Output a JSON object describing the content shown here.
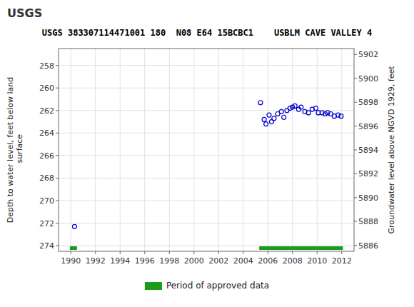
{
  "chart_data": {
    "type": "scatter",
    "title": "USGS 383307114471001 180  N08 E64 15BCBC1    USBLM CAVE VALLEY 4",
    "annotations": [
      "USGS"
    ],
    "y_label": "Depth to water level, feet below land\n surface",
    "y2_label": "Groundwater level above NGVD 1929, feet",
    "xlim": [
      1989.0,
      2013.0
    ],
    "ylim": [
      274.5,
      256.5
    ],
    "y2lim": [
      5885.5,
      5902.5
    ],
    "xticks": [
      1990,
      1992,
      1994,
      1996,
      1998,
      2000,
      2002,
      2004,
      2006,
      2008,
      2010,
      2012
    ],
    "yticks": [
      258,
      260,
      262,
      264,
      266,
      268,
      270,
      272,
      274
    ],
    "y2ticks": [
      5886,
      5888,
      5890,
      5892,
      5894,
      5896,
      5898,
      5900,
      5902
    ],
    "grid": true,
    "legend": "bottom",
    "x": [
      1990.3,
      2005.4,
      2005.7,
      2005.85,
      2006.1,
      2006.3,
      2006.5,
      2006.8,
      2007.1,
      2007.3,
      2007.55,
      2007.8,
      2008.0,
      2008.2,
      2008.5,
      2008.7,
      2009.0,
      2009.3,
      2009.6,
      2009.9,
      2010.1,
      2010.4,
      2010.65,
      2010.85,
      2011.1,
      2011.4,
      2011.7,
      2011.95
    ],
    "values": [
      272.3,
      261.3,
      262.8,
      263.2,
      262.4,
      263.0,
      262.7,
      262.3,
      262.1,
      262.6,
      262.0,
      261.8,
      261.7,
      261.6,
      261.9,
      261.7,
      262.1,
      262.2,
      261.9,
      261.8,
      262.2,
      262.2,
      262.3,
      262.2,
      262.3,
      262.5,
      262.4,
      262.5
    ],
    "color": "#0000CC",
    "marker": "open-circle",
    "series": [
      {
        "name": "Period of approved data",
        "type": "bar",
        "orientation": "horizontal",
        "color": "#1a9c1a",
        "periods": [
          [
            1989.92,
            1990.5
          ],
          [
            2005.3,
            2012.1
          ]
        ]
      }
    ]
  }
}
